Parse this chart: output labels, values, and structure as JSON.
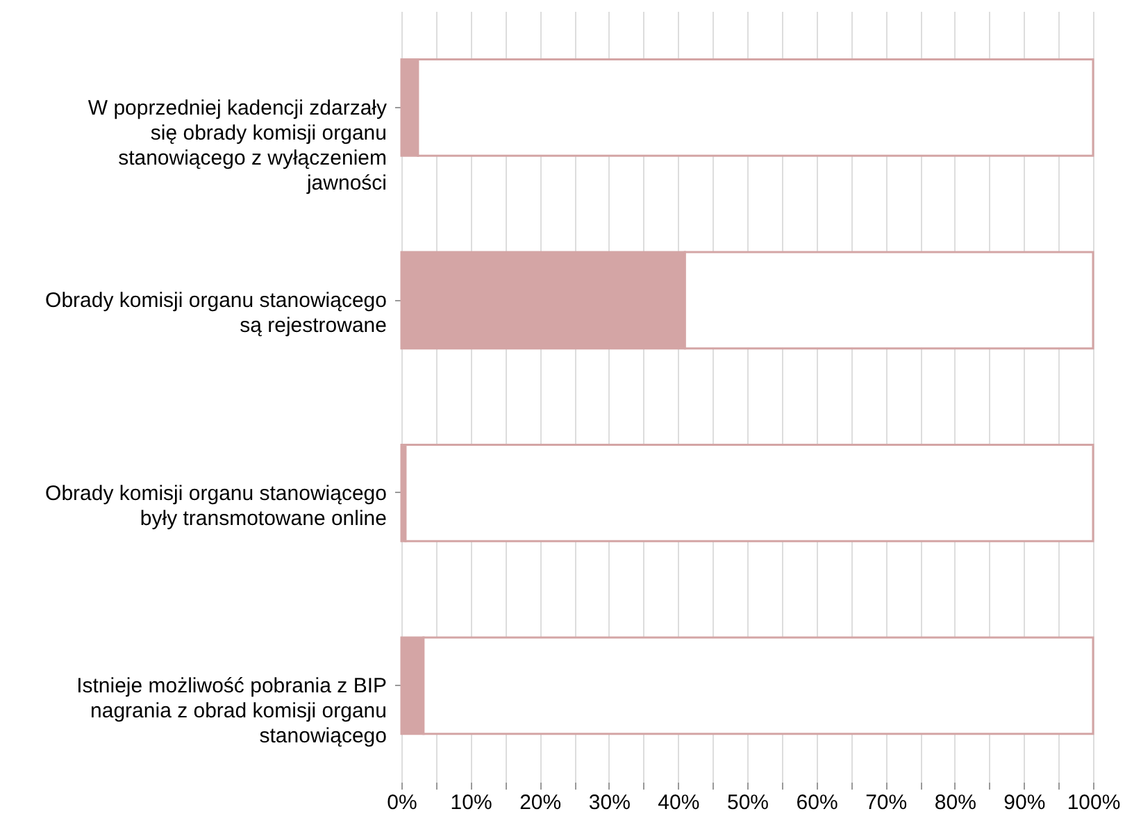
{
  "chart_data": {
    "type": "bar",
    "orientation": "horizontal",
    "stacked": true,
    "categories": [
      "W poprzedniej kadencji zdarzały się obrady komisji organu stanowiącego z wyłączeniem jawności",
      "Obrady komisji organu stanowiącego są rejestrowane",
      "Obrady komisji organu stanowiącego były transmotowane online",
      "Istnieje możliwość pobrania z BIP nagrania z obrad komisji organu stanowiącego"
    ],
    "series": [
      {
        "color": "#d4a5a5",
        "values": [
          2.4,
          41,
          0.6,
          3.2
        ]
      },
      {
        "color": "#ffffff",
        "values": [
          97.6,
          59,
          99.4,
          96.8
        ]
      }
    ],
    "xlim": [
      0,
      100
    ],
    "xticks": [
      {
        "value": 0,
        "label": "0%"
      },
      {
        "value": 5,
        "label": null
      },
      {
        "value": 10,
        "label": "10%"
      },
      {
        "value": 15,
        "label": null
      },
      {
        "value": 20,
        "label": "20%"
      },
      {
        "value": 25,
        "label": null
      },
      {
        "value": 30,
        "label": "30%"
      },
      {
        "value": 35,
        "label": null
      },
      {
        "value": 40,
        "label": "40%"
      },
      {
        "value": 45,
        "label": null
      },
      {
        "value": 50,
        "label": "50%"
      },
      {
        "value": 55,
        "label": null
      },
      {
        "value": 60,
        "label": "60%"
      },
      {
        "value": 65,
        "label": null
      },
      {
        "value": 70,
        "label": "70%"
      },
      {
        "value": 75,
        "label": null
      },
      {
        "value": 80,
        "label": "80%"
      },
      {
        "value": 85,
        "label": null
      },
      {
        "value": 90,
        "label": "90%"
      },
      {
        "value": 95,
        "label": null
      },
      {
        "value": 100,
        "label": "100%"
      }
    ],
    "grid": "x"
  }
}
